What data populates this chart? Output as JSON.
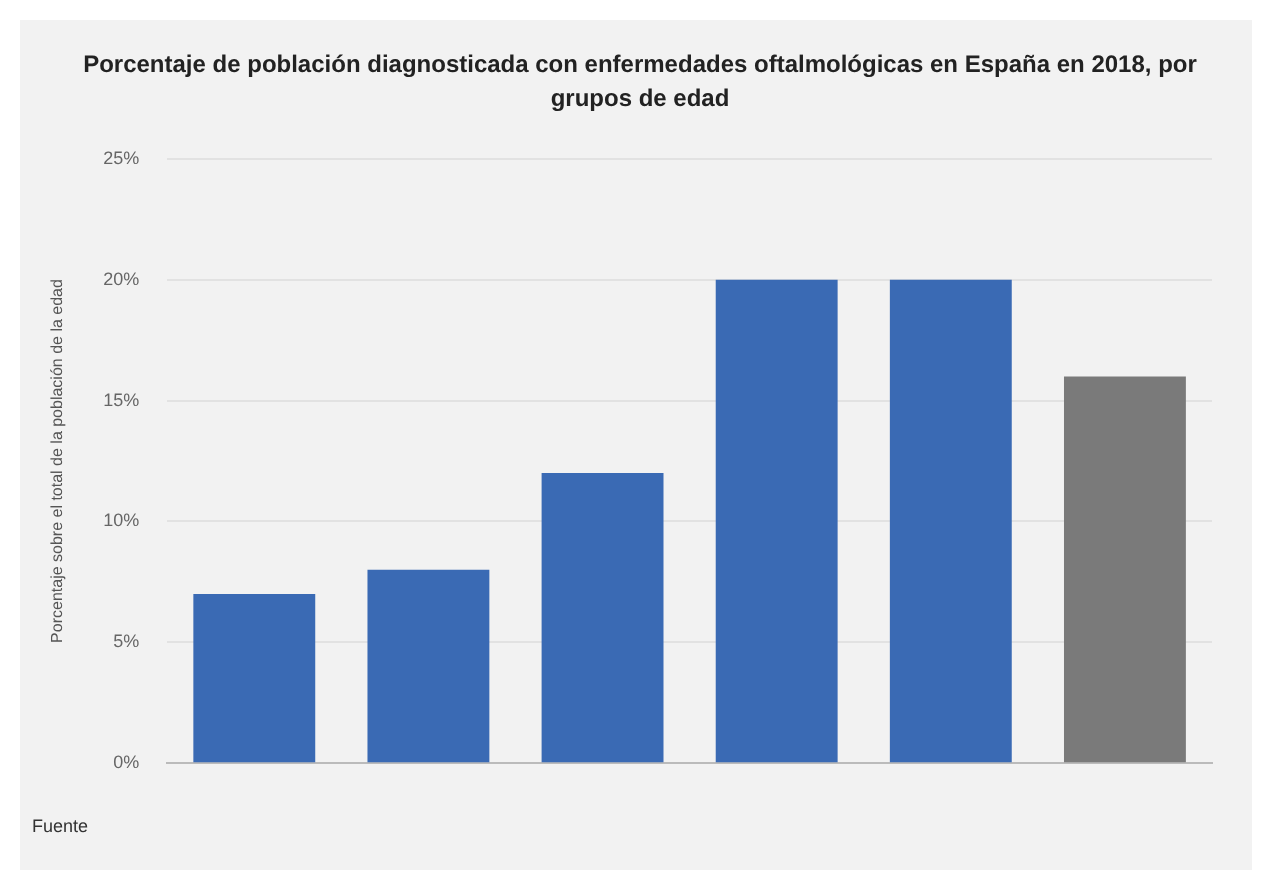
{
  "chart_data": {
    "type": "bar",
    "title": "Porcentaje de población diagnosticada con enfermedades oftalmológicas en España en 2018, por grupos de edad",
    "ylabel": "Porcentaje sobre el total de la población de la edad",
    "categories": [
      null,
      null,
      null,
      null,
      null,
      null
    ],
    "values": [
      7,
      8,
      12,
      20,
      20,
      16
    ],
    "colors": [
      "#3a6ab4",
      "#3a6ab4",
      "#3a6ab4",
      "#3a6ab4",
      "#3a6ab4",
      "#7a7a7a"
    ],
    "ylim": [
      0,
      25
    ],
    "yticks": [
      {
        "value": 0,
        "label": "0%"
      },
      {
        "value": 5,
        "label": "5%"
      },
      {
        "value": 10,
        "label": "10%"
      },
      {
        "value": 15,
        "label": "15%"
      },
      {
        "value": 20,
        "label": "20%"
      },
      {
        "value": 25,
        "label": "25%"
      }
    ],
    "grid": "y",
    "legend": false,
    "annotations": [
      "Fuente"
    ]
  }
}
